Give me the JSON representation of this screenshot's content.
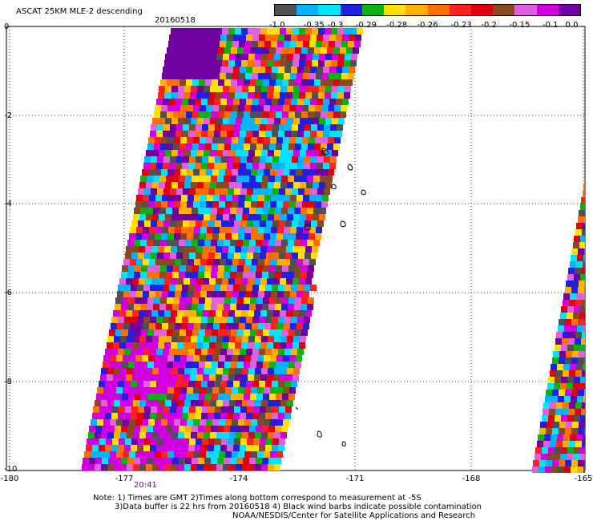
{
  "title": "ASCAT 25KM MLE-2 descending",
  "date": "20160518",
  "colorbar": {
    "colors": [
      "#505050",
      "#00b4ff",
      "#00e4ff",
      "#2020e0",
      "#10b010",
      "#ffe000",
      "#ffb000",
      "#ff7000",
      "#ff2020",
      "#e00010",
      "#8a4a20",
      "#e060e0",
      "#d000e0",
      "#7000a0"
    ],
    "labels": [
      "-1.0",
      "-0.35",
      "-0.3",
      "-0.29",
      "-0.28",
      "-0.26",
      "-0.23",
      "-0.2",
      "-0.15",
      "-0.1",
      "0.0"
    ]
  },
  "axes": {
    "y_labels": [
      "0",
      "-2",
      "-4",
      "-6",
      "-8",
      "-10"
    ],
    "x_labels": [
      "-180",
      "-177",
      "-174",
      "-171",
      "-168",
      "-165"
    ]
  },
  "time_label": "20:41",
  "notes": [
    "Note: 1) Times are GMT 2)Times along bottom correspond to measurement at -5S",
    "3)Data buffer is 22 hrs from 20160518 4) Black wind barbs indicate possible contamination",
    "NOAA/NESDIS/Center for Satellite Applications and Research"
  ]
}
